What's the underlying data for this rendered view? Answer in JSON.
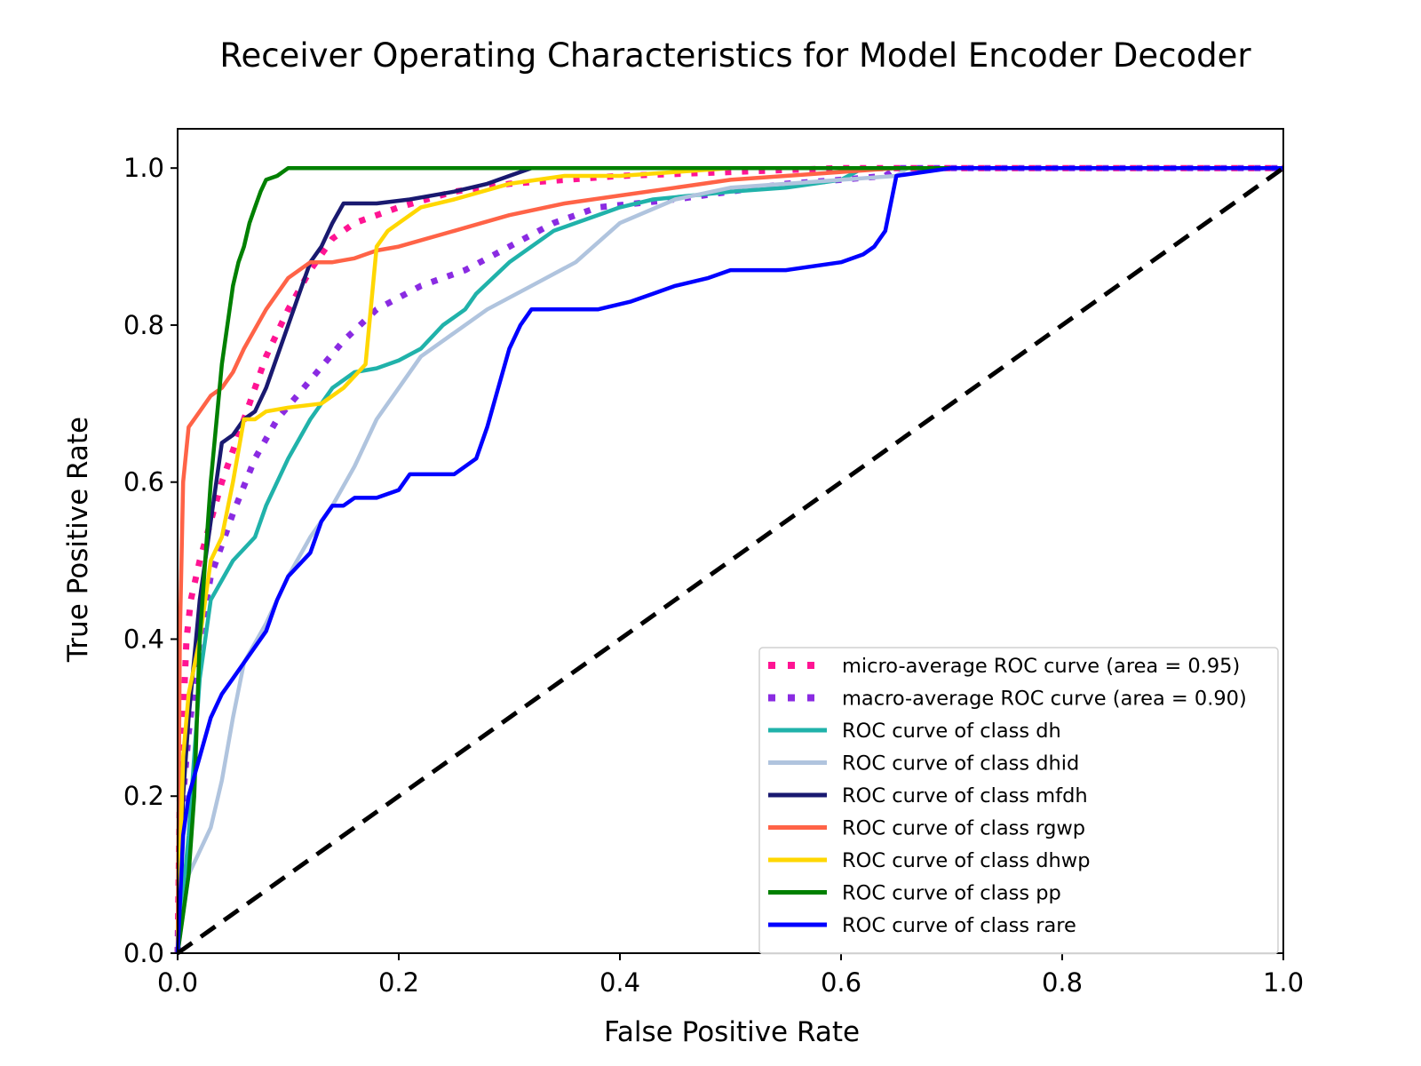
{
  "chart_data": {
    "type": "line",
    "title": "Receiver Operating Characteristics for Model Encoder Decoder",
    "xlabel": "False Positive Rate",
    "ylabel": "True Positive Rate",
    "xlim": [
      0.0,
      1.0
    ],
    "ylim": [
      0.0,
      1.05
    ],
    "xticks": [
      0.0,
      0.2,
      0.4,
      0.6,
      0.8,
      1.0
    ],
    "xtick_labels": [
      "0.0",
      "0.2",
      "0.4",
      "0.6",
      "0.8",
      "1.0"
    ],
    "yticks": [
      0.0,
      0.2,
      0.4,
      0.6,
      0.8,
      1.0
    ],
    "ytick_labels": [
      "0.0",
      "0.2",
      "0.4",
      "0.6",
      "0.8",
      "1.0"
    ],
    "grid": false,
    "legend_position": "lower-right",
    "series": [
      {
        "name": "micro-average ROC curve (area = 0.95)",
        "color": "#ff1493",
        "style": "dotted",
        "x": [
          0,
          0.002,
          0.005,
          0.008,
          0.012,
          0.02,
          0.03,
          0.04,
          0.06,
          0.08,
          0.1,
          0.12,
          0.14,
          0.16,
          0.2,
          0.25,
          0.3,
          0.4,
          0.5,
          0.6,
          0.7,
          0.8,
          1.0
        ],
        "y": [
          0,
          0.2,
          0.3,
          0.4,
          0.45,
          0.5,
          0.55,
          0.6,
          0.68,
          0.76,
          0.82,
          0.87,
          0.91,
          0.93,
          0.95,
          0.97,
          0.98,
          0.99,
          0.995,
          1.0,
          1.0,
          1.0,
          1.0
        ]
      },
      {
        "name": "macro-average ROC curve (area = 0.90)",
        "color": "#8a2be2",
        "style": "dotted",
        "x": [
          0,
          0.005,
          0.01,
          0.02,
          0.03,
          0.05,
          0.07,
          0.09,
          0.12,
          0.15,
          0.18,
          0.22,
          0.26,
          0.3,
          0.34,
          0.38,
          0.45,
          0.5,
          0.55,
          0.6,
          0.64,
          0.65,
          0.8,
          1.0
        ],
        "y": [
          0,
          0.2,
          0.28,
          0.4,
          0.48,
          0.56,
          0.63,
          0.68,
          0.73,
          0.78,
          0.82,
          0.85,
          0.87,
          0.9,
          0.93,
          0.95,
          0.96,
          0.97,
          0.98,
          0.985,
          0.99,
          1.0,
          1.0,
          1.0
        ]
      },
      {
        "name": "ROC curve of class dh",
        "color": "#20b2aa",
        "style": "solid",
        "x": [
          0,
          0.01,
          0.02,
          0.03,
          0.05,
          0.07,
          0.08,
          0.1,
          0.12,
          0.14,
          0.16,
          0.18,
          0.2,
          0.22,
          0.24,
          0.26,
          0.27,
          0.3,
          0.34,
          0.38,
          0.4,
          0.43,
          0.5,
          0.55,
          0.6,
          0.62,
          0.7,
          1.0
        ],
        "y": [
          0,
          0.15,
          0.35,
          0.45,
          0.5,
          0.53,
          0.57,
          0.63,
          0.68,
          0.72,
          0.74,
          0.745,
          0.755,
          0.77,
          0.8,
          0.82,
          0.84,
          0.88,
          0.92,
          0.94,
          0.95,
          0.96,
          0.97,
          0.975,
          0.985,
          1.0,
          1.0,
          1.0
        ]
      },
      {
        "name": "ROC curve of class dhid",
        "color": "#b0c4de",
        "style": "solid",
        "x": [
          0,
          0.01,
          0.02,
          0.03,
          0.04,
          0.05,
          0.06,
          0.08,
          0.1,
          0.12,
          0.14,
          0.16,
          0.18,
          0.2,
          0.22,
          0.25,
          0.28,
          0.32,
          0.36,
          0.4,
          0.45,
          0.5,
          0.55,
          0.6,
          0.65,
          0.66,
          0.8,
          1.0
        ],
        "y": [
          0,
          0.1,
          0.13,
          0.16,
          0.22,
          0.3,
          0.37,
          0.42,
          0.48,
          0.53,
          0.57,
          0.62,
          0.68,
          0.72,
          0.76,
          0.79,
          0.82,
          0.85,
          0.88,
          0.93,
          0.96,
          0.975,
          0.98,
          0.985,
          0.99,
          1.0,
          1.0,
          1.0
        ]
      },
      {
        "name": "ROC curve of class mfdh",
        "color": "#191970",
        "style": "solid",
        "x": [
          0,
          0.005,
          0.01,
          0.02,
          0.03,
          0.04,
          0.05,
          0.06,
          0.07,
          0.08,
          0.09,
          0.1,
          0.11,
          0.12,
          0.13,
          0.14,
          0.15,
          0.18,
          0.21,
          0.25,
          0.28,
          0.3,
          0.32,
          1.0
        ],
        "y": [
          0,
          0.2,
          0.3,
          0.45,
          0.55,
          0.65,
          0.66,
          0.68,
          0.69,
          0.72,
          0.76,
          0.8,
          0.84,
          0.88,
          0.9,
          0.93,
          0.955,
          0.955,
          0.96,
          0.97,
          0.98,
          0.99,
          1.0,
          1.0
        ]
      },
      {
        "name": "ROC curve of class rgwp",
        "color": "#ff6347",
        "style": "solid",
        "x": [
          0,
          0.002,
          0.005,
          0.01,
          0.02,
          0.03,
          0.04,
          0.05,
          0.06,
          0.08,
          0.1,
          0.12,
          0.14,
          0.16,
          0.18,
          0.2,
          0.25,
          0.3,
          0.35,
          0.4,
          0.45,
          0.5,
          0.55,
          0.6,
          0.65,
          1.0
        ],
        "y": [
          0,
          0.4,
          0.6,
          0.67,
          0.69,
          0.71,
          0.72,
          0.74,
          0.77,
          0.82,
          0.86,
          0.88,
          0.88,
          0.885,
          0.895,
          0.9,
          0.92,
          0.94,
          0.955,
          0.965,
          0.975,
          0.985,
          0.99,
          0.995,
          1.0,
          1.0
        ]
      },
      {
        "name": "ROC curve of class dhwp",
        "color": "#ffd700",
        "style": "solid",
        "x": [
          0,
          0.005,
          0.01,
          0.02,
          0.03,
          0.04,
          0.05,
          0.06,
          0.07,
          0.08,
          0.1,
          0.13,
          0.15,
          0.17,
          0.18,
          0.19,
          0.2,
          0.22,
          0.25,
          0.3,
          0.35,
          0.4,
          0.45,
          0.5,
          0.55,
          1.0
        ],
        "y": [
          0,
          0.25,
          0.33,
          0.4,
          0.5,
          0.53,
          0.6,
          0.68,
          0.68,
          0.69,
          0.695,
          0.7,
          0.72,
          0.75,
          0.9,
          0.92,
          0.93,
          0.95,
          0.96,
          0.98,
          0.99,
          0.99,
          0.995,
          1.0,
          1.0,
          1.0
        ]
      },
      {
        "name": "ROC curve of class pp",
        "color": "#008000",
        "style": "solid",
        "x": [
          0,
          0.005,
          0.01,
          0.015,
          0.02,
          0.03,
          0.04,
          0.05,
          0.055,
          0.06,
          0.065,
          0.07,
          0.075,
          0.08,
          0.09,
          0.1,
          0.7
        ],
        "y": [
          0,
          0.05,
          0.1,
          0.2,
          0.4,
          0.6,
          0.75,
          0.85,
          0.88,
          0.9,
          0.93,
          0.95,
          0.97,
          0.985,
          0.99,
          1.0,
          1.0
        ]
      },
      {
        "name": "ROC curve of class rare",
        "color": "#0000ff",
        "style": "solid",
        "x": [
          0,
          0.005,
          0.01,
          0.02,
          0.03,
          0.04,
          0.05,
          0.06,
          0.07,
          0.08,
          0.09,
          0.1,
          0.12,
          0.13,
          0.14,
          0.15,
          0.16,
          0.18,
          0.2,
          0.21,
          0.22,
          0.25,
          0.27,
          0.28,
          0.29,
          0.3,
          0.31,
          0.32,
          0.35,
          0.38,
          0.41,
          0.43,
          0.45,
          0.48,
          0.5,
          0.55,
          0.6,
          0.62,
          0.63,
          0.64,
          0.65,
          0.7,
          1.0
        ],
        "y": [
          0,
          0.15,
          0.2,
          0.25,
          0.3,
          0.33,
          0.35,
          0.37,
          0.39,
          0.41,
          0.45,
          0.48,
          0.51,
          0.55,
          0.57,
          0.57,
          0.58,
          0.58,
          0.59,
          0.61,
          0.61,
          0.61,
          0.63,
          0.67,
          0.72,
          0.77,
          0.8,
          0.82,
          0.82,
          0.82,
          0.83,
          0.84,
          0.85,
          0.86,
          0.87,
          0.87,
          0.88,
          0.89,
          0.9,
          0.92,
          0.99,
          1.0,
          1.0
        ]
      },
      {
        "name": "",
        "color": "#000000",
        "style": "dashed",
        "x": [
          0,
          1
        ],
        "y": [
          0,
          1
        ]
      }
    ]
  }
}
